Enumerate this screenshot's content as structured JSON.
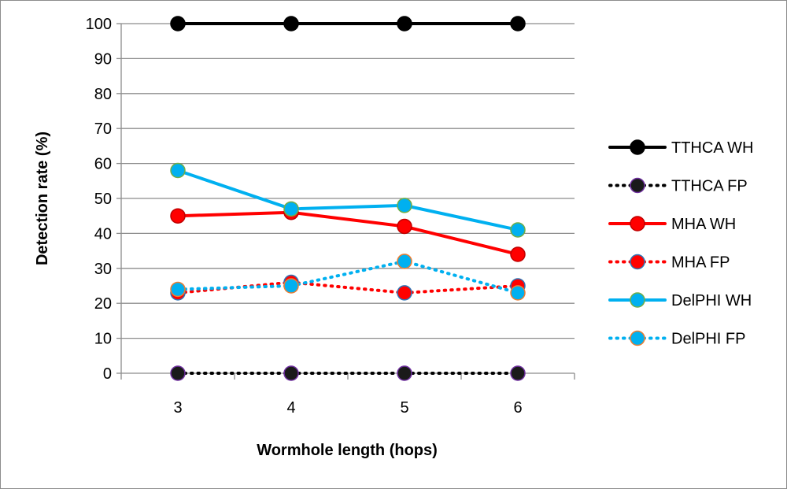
{
  "chart_data": {
    "type": "line",
    "xlabel": "Wormhole length (hops)",
    "ylabel": "Detection rate (%)",
    "categories": [
      "3",
      "4",
      "5",
      "6"
    ],
    "ylim": [
      0,
      100
    ],
    "yticks": [
      "0",
      "10",
      "20",
      "30",
      "40",
      "50",
      "60",
      "70",
      "80",
      "90",
      "100"
    ],
    "grid": "horizontal",
    "legend_position": "right",
    "series": [
      {
        "name": "TTHCA WH",
        "values": [
          100,
          100,
          100,
          100
        ],
        "color": "#000000",
        "style": "solid",
        "marker_fill": "#000000",
        "marker_stroke": "#000000"
      },
      {
        "name": "TTHCA FP",
        "values": [
          0,
          0,
          0,
          0
        ],
        "color": "#000000",
        "style": "dotted",
        "marker_fill": "#1a1a1a",
        "marker_stroke": "#7030a0"
      },
      {
        "name": "MHA WH",
        "values": [
          45,
          46,
          42,
          34
        ],
        "color": "#ff0000",
        "style": "solid",
        "marker_fill": "#ff0000",
        "marker_stroke": "#c00000"
      },
      {
        "name": "MHA FP",
        "values": [
          23,
          26,
          23,
          25
        ],
        "color": "#ff0000",
        "style": "dotted",
        "marker_fill": "#ff0000",
        "marker_stroke": "#2e75b6"
      },
      {
        "name": "DelPHI WH",
        "values": [
          58,
          47,
          48,
          41
        ],
        "color": "#00b0f0",
        "style": "solid",
        "marker_fill": "#00b0f0",
        "marker_stroke": "#70ad47"
      },
      {
        "name": "DelPHI FP",
        "values": [
          24,
          25,
          32,
          23
        ],
        "color": "#00b0f0",
        "style": "dotted",
        "marker_fill": "#00b0f0",
        "marker_stroke": "#ed7d31"
      }
    ]
  }
}
